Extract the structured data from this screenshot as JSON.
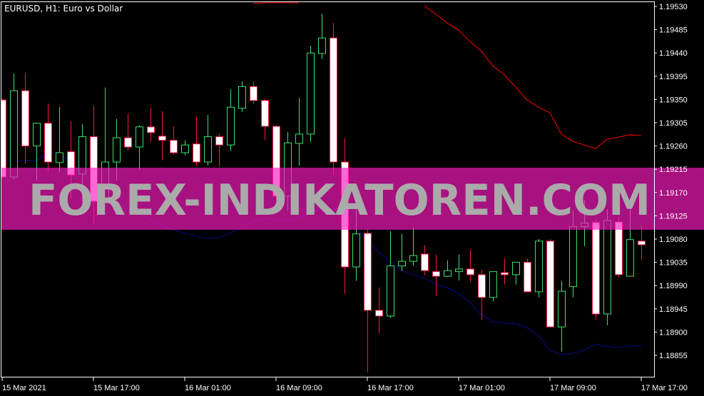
{
  "chart_title": "EURUSD, H1:  Euro vs  Dollar",
  "watermark": "FOREX-INDIKATOREN.COM",
  "colors": {
    "background": "#000000",
    "axis": "#ffffff",
    "bull_border": "#3ee06b",
    "bull_fill": "#000000",
    "bear_border": "#ff1744",
    "bear_fill": "#ffffff",
    "ma_fast": "#ff0000",
    "ma_slow": "#0a0a8c",
    "watermark_band": "#ff1ac2",
    "watermark_text": "#aaaaaa"
  },
  "chart_data": {
    "type": "candlestick",
    "symbol": "EURUSD",
    "timeframe": "H1",
    "ylim": [
      1.18818,
      1.19542
    ],
    "y_ticks": [
      "1.19530",
      "1.19485",
      "1.19440",
      "1.19395",
      "1.19350",
      "1.19305",
      "1.19260",
      "1.19215",
      "1.19170",
      "1.19125",
      "1.19080",
      "1.19035",
      "1.18990",
      "1.18945",
      "1.18900",
      "1.18855"
    ],
    "x_ticks": [
      {
        "bar": 0,
        "label": "15 Mar 2021"
      },
      {
        "bar": 8,
        "label": "15 Mar 17:00"
      },
      {
        "bar": 16,
        "label": "16 Mar 01:00"
      },
      {
        "bar": 24,
        "label": "16 Mar 09:00"
      },
      {
        "bar": 32,
        "label": "16 Mar 17:00"
      },
      {
        "bar": 40,
        "label": "17 Mar 01:00"
      },
      {
        "bar": 48,
        "label": "17 Mar 09:00"
      },
      {
        "bar": 56,
        "label": "17 Mar 17:00"
      }
    ],
    "ohlc": [
      [
        1.19349,
        1.19352,
        1.19197,
        1.192
      ],
      [
        1.192,
        1.194,
        1.19195,
        1.19367
      ],
      [
        1.19367,
        1.19402,
        1.19225,
        1.1926
      ],
      [
        1.1926,
        1.19305,
        1.19193,
        1.19304
      ],
      [
        1.19304,
        1.19342,
        1.19211,
        1.19229
      ],
      [
        1.19228,
        1.19335,
        1.19209,
        1.19247
      ],
      [
        1.19249,
        1.19308,
        1.19159,
        1.19204
      ],
      [
        1.19206,
        1.19302,
        1.19152,
        1.19278
      ],
      [
        1.19278,
        1.19338,
        1.19111,
        1.19153
      ],
      [
        1.19153,
        1.19373,
        1.19152,
        1.19229
      ],
      [
        1.19229,
        1.19312,
        1.19193,
        1.19276
      ],
      [
        1.19276,
        1.19323,
        1.19251,
        1.19258
      ],
      [
        1.19258,
        1.193,
        1.19214,
        1.19297
      ],
      [
        1.19297,
        1.19334,
        1.19268,
        1.19286
      ],
      [
        1.19279,
        1.19327,
        1.19232,
        1.19271
      ],
      [
        1.19271,
        1.19298,
        1.19243,
        1.19247
      ],
      [
        1.19247,
        1.19271,
        1.19242,
        1.19262
      ],
      [
        1.19264,
        1.19316,
        1.19221,
        1.19229
      ],
      [
        1.19229,
        1.1932,
        1.19222,
        1.19278
      ],
      [
        1.19278,
        1.19283,
        1.1922,
        1.19262
      ],
      [
        1.19262,
        1.1937,
        1.19251,
        1.19335
      ],
      [
        1.19333,
        1.19385,
        1.19326,
        1.19375
      ],
      [
        1.19375,
        1.19385,
        1.19341,
        1.19348
      ],
      [
        1.19348,
        1.19351,
        1.19272,
        1.19298
      ],
      [
        1.19298,
        1.193,
        1.19155,
        1.19163
      ],
      [
        1.19163,
        1.19287,
        1.19135,
        1.19266
      ],
      [
        1.19265,
        1.19353,
        1.19222,
        1.19283
      ],
      [
        1.19283,
        1.19454,
        1.19268,
        1.1944
      ],
      [
        1.19439,
        1.19516,
        1.19428,
        1.19469
      ],
      [
        1.19469,
        1.19498,
        1.19204,
        1.19229
      ],
      [
        1.19229,
        1.19275,
        1.18974,
        1.19026
      ],
      [
        1.19026,
        1.19137,
        1.18999,
        1.1909
      ],
      [
        1.19091,
        1.19099,
        1.18822,
        1.18942
      ],
      [
        1.18942,
        1.18986,
        1.18898,
        1.18931
      ],
      [
        1.18931,
        1.19095,
        1.18927,
        1.19028
      ],
      [
        1.19028,
        1.1909,
        1.19018,
        1.19037
      ],
      [
        1.19037,
        1.19102,
        1.19028,
        1.19048
      ],
      [
        1.19051,
        1.19068,
        1.1901,
        1.19019
      ],
      [
        1.19017,
        1.1905,
        1.1897,
        1.19008
      ],
      [
        1.19008,
        1.19039,
        1.19007,
        1.19019
      ],
      [
        1.19017,
        1.1905,
        1.19,
        1.19022
      ],
      [
        1.19022,
        1.19059,
        1.18997,
        1.19011
      ],
      [
        1.19011,
        1.19021,
        1.18924,
        1.18967
      ],
      [
        1.18967,
        1.19017,
        1.18959,
        1.19017
      ],
      [
        1.19015,
        1.19042,
        1.18992,
        1.19011
      ],
      [
        1.19011,
        1.19036,
        1.18992,
        1.19035
      ],
      [
        1.19035,
        1.19042,
        1.18978,
        1.18978
      ],
      [
        1.18978,
        1.1908,
        1.18967,
        1.19076
      ],
      [
        1.19076,
        1.1908,
        1.18909,
        1.1891
      ],
      [
        1.1891,
        1.18999,
        1.18862,
        1.18979
      ],
      [
        1.18988,
        1.19135,
        1.18967,
        1.19104
      ],
      [
        1.19104,
        1.19155,
        1.19066,
        1.19111
      ],
      [
        1.19112,
        1.19119,
        1.18924,
        1.18935
      ],
      [
        1.18935,
        1.19138,
        1.18913,
        1.19116
      ],
      [
        1.19113,
        1.19124,
        1.19006,
        1.19011
      ],
      [
        1.19008,
        1.19142,
        1.19008,
        1.19079
      ],
      [
        1.19076,
        1.19106,
        1.19039,
        1.19069
      ]
    ],
    "lines": [
      {
        "color": "#0a0a8c",
        "values": [
          1.19231,
          1.19231,
          1.19232,
          1.19232,
          1.19246,
          1.19248,
          1.19228,
          1.19208,
          1.19189,
          1.19167,
          1.19149,
          1.19139,
          1.19128,
          1.19117,
          1.19106,
          1.19098,
          1.19091,
          1.19086,
          1.19081,
          1.19083,
          1.19091,
          1.19104,
          1.19115,
          1.1912,
          1.19117,
          1.19115,
          1.19122,
          1.19131,
          1.19138,
          1.19139,
          1.19126,
          1.19101,
          1.19077,
          1.19055,
          1.19035,
          1.19019,
          1.19012,
          1.19004,
          1.18993,
          1.18986,
          1.18974,
          1.18957,
          1.18934,
          1.1892,
          1.18917,
          1.18916,
          1.18908,
          1.18894,
          1.18864,
          1.18857,
          1.18859,
          1.18865,
          1.18876,
          1.18873,
          1.1887,
          1.18873,
          1.18873
        ]
      },
      {
        "color": "#ff0000",
        "values": [
          null,
          null,
          null,
          null,
          null,
          null,
          null,
          null,
          null,
          null,
          null,
          null,
          null,
          null,
          null,
          null,
          null,
          null,
          null,
          null,
          null,
          null,
          1.19536,
          1.19537,
          1.19537,
          1.19537,
          1.19537,
          null,
          null,
          null,
          null,
          null,
          null,
          null,
          null,
          null,
          null,
          1.19531,
          1.19515,
          1.19498,
          1.19484,
          1.19462,
          1.19443,
          1.19415,
          1.19398,
          1.19374,
          1.19349,
          1.19335,
          1.19324,
          1.19283,
          1.19269,
          1.19262,
          1.19255,
          1.19273,
          1.19277,
          1.19282,
          1.1928
        ]
      }
    ]
  }
}
